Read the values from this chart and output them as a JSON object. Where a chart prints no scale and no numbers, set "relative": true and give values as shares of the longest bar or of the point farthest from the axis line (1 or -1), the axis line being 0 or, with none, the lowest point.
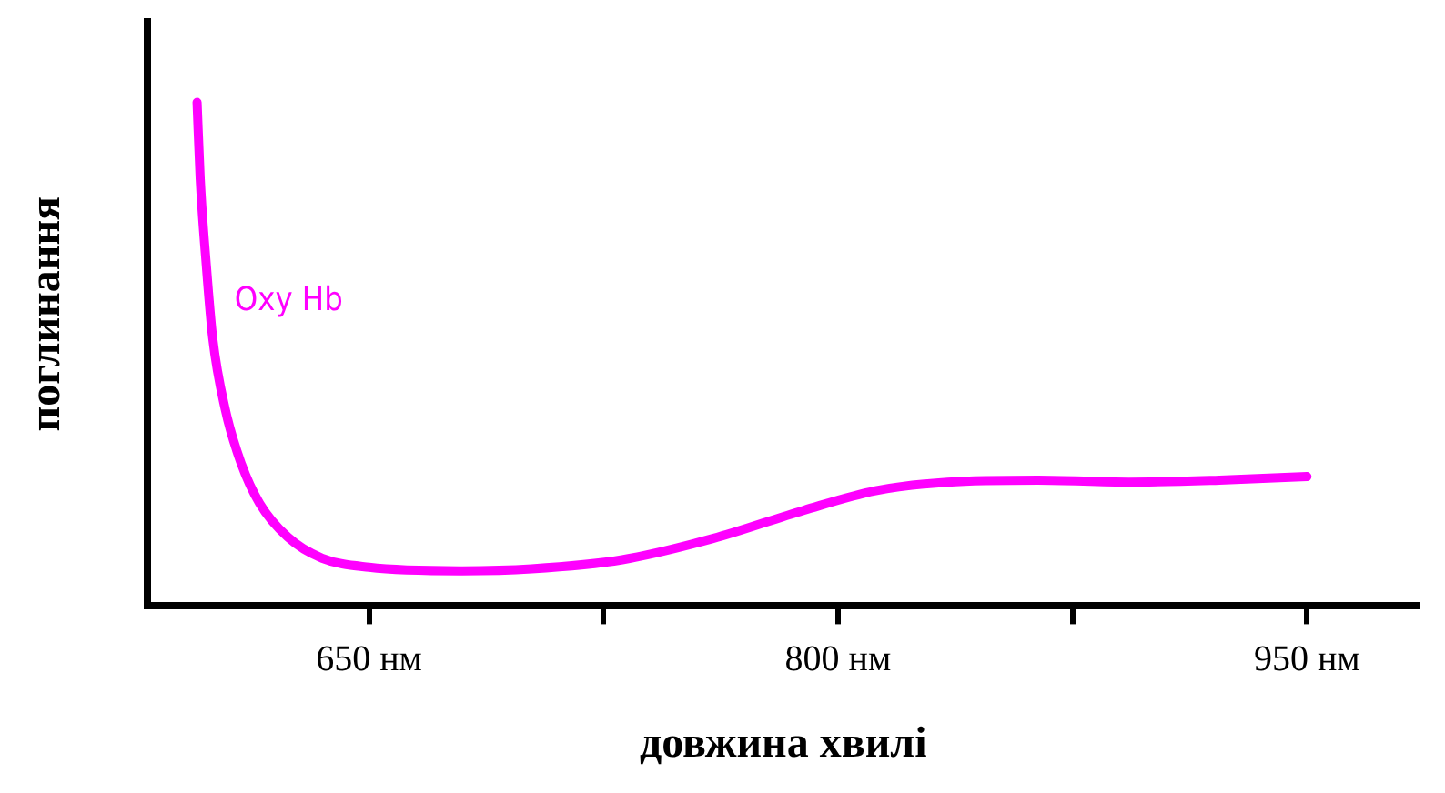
{
  "chart_data": {
    "type": "line",
    "xlabel": "довжина хвилі",
    "ylabel": "поглинання",
    "relative": true,
    "grid": false,
    "legend": false,
    "marker": "none",
    "line_style": "solid",
    "xlim": [
      579,
      986
    ],
    "xticks": [
      {
        "value": 650,
        "label": "650 нм"
      },
      {
        "value": 725,
        "label": null
      },
      {
        "value": 800,
        "label": "800 нм"
      },
      {
        "value": 875,
        "label": null
      },
      {
        "value": 950,
        "label": "950 нм"
      }
    ],
    "series": [
      {
        "name": "Oxy Hb",
        "color": "#ff00ff",
        "x": [
          595,
          596,
          598,
          600,
          604,
          609,
          615,
          624,
          635,
          650,
          679,
          702,
          731,
          760,
          789,
          812,
          835,
          864,
          893,
          922,
          950
        ],
        "values": [
          1.0,
          0.849,
          0.673,
          0.532,
          0.391,
          0.285,
          0.204,
          0.137,
          0.095,
          0.077,
          0.07,
          0.074,
          0.092,
          0.134,
          0.19,
          0.229,
          0.246,
          0.25,
          0.246,
          0.25,
          0.257
        ]
      }
    ]
  }
}
